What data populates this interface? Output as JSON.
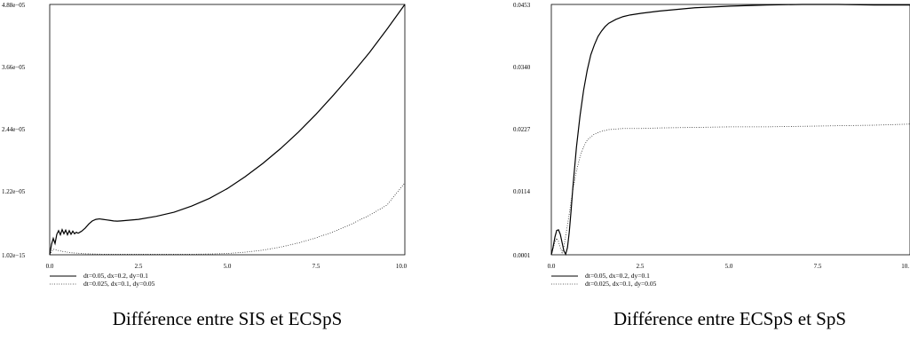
{
  "chart_data": [
    {
      "type": "line",
      "caption": "Différence entre SIS et ECSpS",
      "xlim": [
        0,
        10
      ],
      "ylim": [
        1.02e-15,
        4.88e-05
      ],
      "x_ticks": [
        "0.0",
        "2.5",
        "5.0",
        "7.5",
        "10.0"
      ],
      "y_ticks": [
        "1.02e−15",
        "1.22e−05",
        "2.44e−05",
        "3.66e−05",
        "4.88e−05"
      ],
      "series": [
        {
          "name": "dt=0.05, dx=0.2, dy=0.1",
          "style": "solid",
          "x": [
            0.0,
            0.05,
            0.1,
            0.15,
            0.2,
            0.25,
            0.3,
            0.35,
            0.4,
            0.45,
            0.5,
            0.55,
            0.6,
            0.65,
            0.7,
            0.75,
            0.8,
            0.85,
            0.9,
            0.95,
            1.0,
            1.1,
            1.2,
            1.3,
            1.4,
            1.5,
            1.6,
            1.7,
            1.8,
            1.9,
            2.0,
            2.5,
            3.0,
            3.5,
            4.0,
            4.5,
            5.0,
            5.5,
            6.0,
            6.5,
            7.0,
            7.5,
            8.0,
            8.5,
            9.0,
            9.5,
            10.0
          ],
          "y": [
            0.0,
            2e-06,
            3.2e-06,
            2.2e-06,
            4e-06,
            4.7e-06,
            3.9e-06,
            4.9e-06,
            4.1e-06,
            4.8e-06,
            3.9e-06,
            4.7e-06,
            4e-06,
            4.6e-06,
            4.1e-06,
            4.4e-06,
            4.2e-06,
            4.4e-06,
            4.6e-06,
            4.9e-06,
            5.2e-06,
            6e-06,
            6.6e-06,
            6.9e-06,
            7e-06,
            6.9e-06,
            6.8e-06,
            6.7e-06,
            6.6e-06,
            6.55e-06,
            6.6e-06,
            6.9e-06,
            7.5e-06,
            8.3e-06,
            9.5e-06,
            1.1e-05,
            1.29e-05,
            1.52e-05,
            1.78e-05,
            2.07e-05,
            2.39e-05,
            2.74e-05,
            3.12e-05,
            3.52e-05,
            3.94e-05,
            4.4e-05,
            4.88e-05
          ]
        },
        {
          "name": "dt=0.025, dx=0.1, dy=0.05",
          "style": "dotted",
          "x": [
            0.0,
            0.1,
            0.2,
            0.4,
            0.6,
            0.8,
            1.0,
            1.5,
            2.0,
            2.5,
            3.0,
            3.5,
            4.0,
            4.5,
            5.0,
            5.5,
            6.0,
            6.5,
            7.0,
            7.5,
            8.0,
            8.5,
            9.0,
            9.5,
            10.0
          ],
          "y": [
            0.0,
            1.1e-06,
            9e-07,
            6e-07,
            4e-07,
            3e-07,
            2e-07,
            1e-07,
            1e-07,
            1e-07,
            1e-07,
            1e-07,
            1e-07,
            1.5e-07,
            2.5e-07,
            5e-07,
            9e-07,
            1.5e-06,
            2.3e-06,
            3.3e-06,
            4.5e-06,
            6e-06,
            7.7e-06,
            9.7e-06,
            1.4e-05
          ]
        }
      ]
    },
    {
      "type": "line",
      "caption": "Différence entre ECSpS et SpS",
      "xlim": [
        0,
        10
      ],
      "ylim": [
        0.0001,
        0.0453
      ],
      "x_ticks": [
        "0.0",
        "2.5",
        "5.0",
        "7.5",
        "10."
      ],
      "y_ticks": [
        "0.0001",
        "0.0114",
        "0.0227",
        "0.0340",
        "0.0453"
      ],
      "series": [
        {
          "name": "dt=0.05, dx=0.2, dy=0.1",
          "style": "solid",
          "x": [
            0.0,
            0.05,
            0.1,
            0.15,
            0.2,
            0.25,
            0.3,
            0.35,
            0.4,
            0.45,
            0.5,
            0.55,
            0.6,
            0.7,
            0.8,
            0.9,
            1.0,
            1.1,
            1.2,
            1.3,
            1.4,
            1.5,
            1.6,
            1.8,
            2.0,
            2.2,
            2.5,
            3.0,
            3.5,
            4.0,
            5.0,
            6.0,
            7.0,
            8.0,
            9.0,
            10.0
          ],
          "y": [
            0.0001,
            0.0015,
            0.0033,
            0.0045,
            0.0046,
            0.0038,
            0.0023,
            0.0008,
            0.0002,
            0.0014,
            0.0042,
            0.008,
            0.0122,
            0.0195,
            0.0252,
            0.0298,
            0.0334,
            0.0362,
            0.038,
            0.0395,
            0.0405,
            0.0413,
            0.0419,
            0.0426,
            0.0431,
            0.0434,
            0.0437,
            0.0441,
            0.0444,
            0.0447,
            0.045,
            0.0452,
            0.0453,
            0.0453,
            0.0452,
            0.0452
          ]
        },
        {
          "name": "dt=0.025, dx=0.1, dy=0.05",
          "style": "dotted",
          "x": [
            0.0,
            0.05,
            0.1,
            0.15,
            0.2,
            0.25,
            0.3,
            0.35,
            0.4,
            0.5,
            0.6,
            0.7,
            0.8,
            0.9,
            1.0,
            1.2,
            1.4,
            1.6,
            1.8,
            2.0,
            2.5,
            3.0,
            4.0,
            5.0,
            6.0,
            7.0,
            8.0,
            9.0,
            10.0
          ],
          "y": [
            0.0001,
            0.0012,
            0.0024,
            0.0031,
            0.0025,
            0.0014,
            0.0005,
            0.0015,
            0.0035,
            0.0075,
            0.0118,
            0.0152,
            0.0178,
            0.0196,
            0.0208,
            0.0219,
            0.0224,
            0.0227,
            0.0228,
            0.0229,
            0.0229,
            0.023,
            0.0231,
            0.0232,
            0.0232,
            0.0233,
            0.0234,
            0.0235,
            0.0237
          ]
        }
      ]
    }
  ]
}
